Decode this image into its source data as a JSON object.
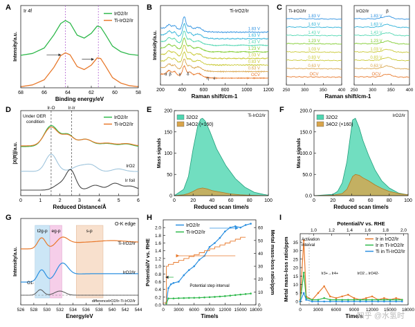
{
  "colors": {
    "orange": "#e8782a",
    "green": "#2db84a",
    "blue": "#2a8fe0",
    "gray": "#555555",
    "lightblue": "#9ec4dc",
    "darkgray": "#444444",
    "teal": "#4ed6b0",
    "tan": "#d8a44a",
    "yellow": "#c8c832",
    "lime": "#7ecb2c",
    "cyan": "#2ab0d8",
    "purple": "#b060d0"
  },
  "panels": {
    "A": {
      "letter": "A"
    },
    "B": {
      "letter": "B"
    },
    "C": {
      "letter": "C"
    },
    "D": {
      "letter": "D"
    },
    "E": {
      "letter": "E"
    },
    "F": {
      "letter": "F"
    },
    "G": {
      "letter": "G"
    },
    "H": {
      "letter": "H"
    },
    "I": {
      "letter": "I"
    }
  },
  "watermark": "知乎 @水氢时",
  "chart_data": [
    {
      "id": "A",
      "type": "line",
      "title": "Ir 4f",
      "xlabel": "Binding energy/eV",
      "ylabel": "Intensity/a.u.",
      "xlim": [
        68,
        58
      ],
      "xticks": [
        68,
        66,
        64,
        62,
        60,
        58
      ],
      "legend": [
        "IrO2/Ir",
        "Ti-IrO2/Ir"
      ],
      "series": [
        {
          "name": "IrO2/Ir",
          "color": "green",
          "x": [
            68,
            67,
            66,
            65.2,
            64.6,
            64.2,
            63.8,
            63.2,
            62.6,
            62,
            61.5,
            61.2,
            60.8,
            60.2,
            59.5,
            58.8,
            58
          ],
          "y": [
            0.05,
            0.1,
            0.25,
            0.6,
            0.92,
            1.0,
            0.93,
            0.6,
            0.52,
            0.65,
            0.85,
            0.82,
            0.62,
            0.3,
            0.15,
            0.08,
            0.05
          ]
        },
        {
          "name": "Ti-IrO2/Ir",
          "color": "orange",
          "x": [
            68,
            67,
            66,
            65.2,
            64.6,
            64.2,
            63.8,
            63.2,
            62.6,
            62,
            61.5,
            61.2,
            60.8,
            60.2,
            59.5,
            58.8,
            58
          ],
          "y": [
            0.03,
            0.08,
            0.22,
            0.55,
            0.88,
            0.96,
            0.9,
            0.58,
            0.5,
            0.62,
            0.82,
            0.8,
            0.6,
            0.28,
            0.13,
            0.06,
            0.03
          ]
        }
      ]
    },
    {
      "id": "B",
      "type": "line",
      "title": "Ti-IrO2/Ir",
      "xlabel": "Raman shift/cm-1",
      "ylabel": "Intensity/a.u.",
      "xlim": [
        200,
        1200
      ],
      "xticks": [
        200,
        400,
        600,
        800,
        1000,
        1200
      ],
      "peak_labels": [
        "α",
        "β",
        "γ",
        "δ",
        "η",
        "ε"
      ],
      "series_labels": [
        "1.83 V",
        "1.63 V",
        "1.43 V",
        "1.23 V",
        "1.03 V",
        "0.83 V",
        "0.63 V",
        "OCV"
      ]
    },
    {
      "id": "C",
      "type": "line",
      "left_title": "Ti-IrO2/Ir",
      "right_title": "IrO2/Ir",
      "right_peak_label": "β",
      "xlabel": "Raman shift/cm-1",
      "xlim": [
        250,
        400
      ],
      "xticks": [
        250,
        300,
        350,
        400
      ],
      "series_labels": [
        "1.83 V",
        "1.63 V",
        "1.43 V",
        "1.23 V",
        "1.03 V",
        "0.83 V",
        "0.63 V",
        "OCV"
      ]
    },
    {
      "id": "D",
      "type": "line",
      "xlabel": "Reduced Distance/Å",
      "ylabel": "|X(R)|/a.u.",
      "xlim": [
        0,
        6
      ],
      "xticks": [
        0,
        1,
        2,
        3,
        4,
        5,
        6
      ],
      "annotations": [
        "Under OER condition",
        "Ir-O",
        "Ir-Ir"
      ],
      "curve_labels": [
        "IrO2",
        "Ir foil"
      ],
      "legend": [
        "IrO2/Ir",
        "Ti-IrO2/Ir"
      ]
    },
    {
      "id": "E",
      "type": "area",
      "title": "Ti-IrO2/Ir",
      "xlabel": "Reduced scan time/s",
      "ylabel": "Mass signals",
      "xlim": [
        0,
        100
      ],
      "ylim": [
        0,
        200
      ],
      "xticks": [
        0,
        20,
        40,
        60,
        80,
        100
      ],
      "yticks": [
        0,
        50,
        100,
        150,
        200
      ],
      "yticklabels": [
        "0",
        "50",
        "100",
        "150",
        "200"
      ],
      "legend": [
        "32O2",
        "34O2 (×160)"
      ],
      "series": [
        {
          "name": "32O2",
          "color": "teal",
          "x": [
            0,
            10,
            15,
            20,
            25,
            28,
            30,
            33,
            38,
            45,
            55,
            65,
            75,
            85,
            95,
            100
          ],
          "y": [
            0,
            15,
            45,
            110,
            165,
            180,
            182,
            175,
            150,
            110,
            70,
            40,
            20,
            8,
            3,
            1
          ]
        },
        {
          "name": "34O2 (×160)",
          "color": "tan",
          "x": [
            0,
            10,
            15,
            20,
            25,
            30,
            35,
            40,
            50,
            60,
            70,
            80,
            100
          ],
          "y": [
            0,
            2,
            5,
            10,
            16,
            18,
            16,
            12,
            8,
            4,
            2,
            1,
            0
          ]
        }
      ]
    },
    {
      "id": "F",
      "type": "area",
      "title": "IrO2/Ir",
      "xlabel": "Reduced scan time/s",
      "ylabel": "Mass signals",
      "xlim": [
        0,
        100
      ],
      "ylim": [
        0,
        200
      ],
      "xticks": [
        0,
        20,
        40,
        60,
        80,
        100
      ],
      "yticks": [
        0,
        50,
        100,
        150,
        200
      ],
      "yticklabels": [
        "0.0",
        "50.0",
        "100.0",
        "150.0",
        "200.0"
      ],
      "legend": [
        "32O2",
        "34O2 (×160)"
      ],
      "series": [
        {
          "name": "32O2",
          "color": "teal",
          "x": [
            0,
            20,
            25,
            30,
            35,
            38,
            41,
            44,
            48,
            52,
            58,
            65,
            72,
            80,
            90,
            100
          ],
          "y": [
            0,
            3,
            10,
            30,
            80,
            130,
            178,
            182,
            160,
            130,
            95,
            60,
            35,
            18,
            6,
            2
          ]
        },
        {
          "name": "34O2 (×160)",
          "color": "tan",
          "x": [
            0,
            20,
            30,
            35,
            38,
            41,
            44,
            48,
            52,
            58,
            65,
            72,
            80,
            90,
            100
          ],
          "y": [
            0,
            1,
            5,
            15,
            30,
            45,
            50,
            48,
            42,
            35,
            25,
            17,
            10,
            5,
            2
          ]
        }
      ]
    },
    {
      "id": "G",
      "type": "line",
      "title": "O-K edge",
      "xlabel": "Energy/eV",
      "ylabel": "Intensity/a.u.",
      "xlim": [
        526,
        544
      ],
      "xticks": [
        526,
        528,
        530,
        532,
        534,
        536,
        538,
        540,
        542,
        544
      ],
      "band_labels": [
        "t2g-p",
        "eg-p",
        "s-p"
      ],
      "curve_labels": [
        "Ti-IrO2/Ir",
        "IrO2/Ir",
        "O1-",
        "differenceIrO2/Ir-Ti-IrO2/Ir"
      ]
    },
    {
      "id": "H",
      "type": "line",
      "xlabel": "Time/s",
      "ylabel": "Potential/V vs. RHE",
      "y2label": "Metal mass-loss ratio/ppm",
      "xlim": [
        0,
        18000
      ],
      "ylim": [
        0.0,
        2.2
      ],
      "y2lim": [
        0,
        66
      ],
      "xticks": [
        0,
        3000,
        6000,
        9000,
        12000,
        15000,
        18000
      ],
      "yticks": [
        0.0,
        0.2,
        0.4,
        0.6,
        0.8,
        1.0,
        1.2,
        1.4,
        1.6,
        1.8,
        2.0
      ],
      "y2ticks": [
        0,
        10,
        20,
        30,
        40,
        50,
        60
      ],
      "top_ticklabels": [
        "1.0",
        "1.2",
        "1.4",
        "1.6",
        "1.8",
        "2.0"
      ],
      "legend": [
        "IrO2/Ir",
        "Ti-IrO2/Ir"
      ],
      "annotation": "Potential step interval",
      "series": [
        {
          "name": "IrO2/Ir",
          "color": "blue",
          "axis": "y2",
          "x": [
            600,
            1000,
            1500,
            2000,
            3000,
            4000,
            5000,
            6000,
            7000,
            8000,
            9000,
            10000,
            11000,
            12000,
            13000,
            14000,
            15000,
            16000,
            17000
          ],
          "y": [
            2,
            13,
            16,
            17,
            18,
            23,
            27,
            30,
            35,
            38,
            45,
            48,
            52,
            57,
            60,
            61,
            60,
            62,
            63
          ]
        },
        {
          "name": "Ti-IrO2/Ir",
          "color": "green",
          "axis": "y2",
          "x": [
            600,
            1000,
            2000,
            3000,
            4000,
            5000,
            6000,
            7000,
            8000,
            9000,
            10000,
            11000,
            12000,
            13000,
            14000,
            15000,
            16000,
            17000
          ],
          "y": [
            1,
            5,
            5,
            5.2,
            5.3,
            5.4,
            5.5,
            5.6,
            5.8,
            6.0,
            6.2,
            6.5,
            6.8,
            7.2,
            7.6,
            8.0,
            8.4,
            8.8
          ]
        },
        {
          "name": "Potential",
          "color": "orange",
          "axis": "y",
          "x": [
            0,
            600,
            600,
            1000,
            1000,
            2000,
            2000,
            3000,
            3000,
            4000,
            4000,
            5000,
            5000,
            6000,
            6000,
            7000,
            7000,
            8000,
            8000,
            9000,
            9000,
            10000,
            10000,
            11000,
            11000,
            12000,
            12000,
            13000,
            13000,
            14000,
            14000,
            15000,
            15000,
            16000
          ],
          "y": [
            0.05,
            0.05,
            1.0,
            1.0,
            1.05,
            1.05,
            1.1,
            1.1,
            1.15,
            1.15,
            1.2,
            1.2,
            1.25,
            1.25,
            1.3,
            1.3,
            1.35,
            1.35,
            1.4,
            1.4,
            1.45,
            1.45,
            1.5,
            1.5,
            1.55,
            1.55,
            1.6,
            1.6,
            1.65,
            1.65,
            1.7,
            1.7,
            1.75,
            1.75
          ]
        }
      ]
    },
    {
      "id": "I",
      "type": "line",
      "xlabel": "Time/s",
      "ylabel": "Metal mass-loss ratio/ppm",
      "top_xlabel": "Potential/V vs. RHE",
      "xlim": [
        0,
        18000
      ],
      "ylim": [
        -2,
        40
      ],
      "xticks": [
        0,
        3000,
        6000,
        9000,
        12000,
        15000,
        18000
      ],
      "yticks": [
        0,
        5,
        10,
        15,
        20,
        25,
        30,
        35
      ],
      "top_ticklabels": [
        "1.0",
        "1.2",
        "1.4",
        "1.6",
        "1.8",
        "2.0"
      ],
      "legend": [
        "Ir in IrO2/Ir",
        "Ir in Ti-IrO2/Ir",
        "Ti in Ti-IrO2/Ir"
      ],
      "annotations": [
        "Activation interval",
        "Ir3+→Ir4+",
        "IrO2→IrO42-"
      ],
      "series": [
        {
          "name": "Ir in IrO2/Ir",
          "color": "orange",
          "x": [
            0,
            600,
            1000,
            2000,
            3000,
            4000,
            5000,
            6000,
            7000,
            8000,
            9000,
            10000,
            11000,
            12000,
            13000,
            14000,
            15000,
            16000,
            17000
          ],
          "y": [
            1,
            36,
            3,
            1,
            5,
            9,
            3,
            2,
            3,
            4,
            2,
            1,
            2,
            3,
            1,
            2,
            1,
            2,
            1
          ]
        },
        {
          "name": "Ir in Ti-IrO2/Ir",
          "color": "green",
          "x": [
            0,
            600,
            1000,
            2000,
            3000,
            4000,
            5000,
            6000,
            7000,
            8000,
            9000,
            10000,
            11000,
            12000,
            13000,
            14000,
            15000,
            16000,
            17000
          ],
          "y": [
            0,
            17,
            2,
            1,
            1,
            2,
            1,
            1,
            1,
            1,
            1,
            1,
            1,
            1,
            1,
            1,
            1,
            1,
            1
          ]
        },
        {
          "name": "Ti in Ti-IrO2/Ir",
          "color": "blue",
          "x": [
            0,
            600,
            1000,
            2000,
            3000,
            4000,
            5000,
            6000,
            7000,
            8000,
            9000,
            10000,
            11000,
            12000,
            13000,
            14000,
            15000,
            16000,
            17000
          ],
          "y": [
            0,
            5,
            1,
            0,
            0,
            0,
            0,
            0,
            0,
            0,
            0,
            0,
            0,
            0,
            0,
            0,
            0,
            0,
            0
          ]
        }
      ]
    }
  ]
}
